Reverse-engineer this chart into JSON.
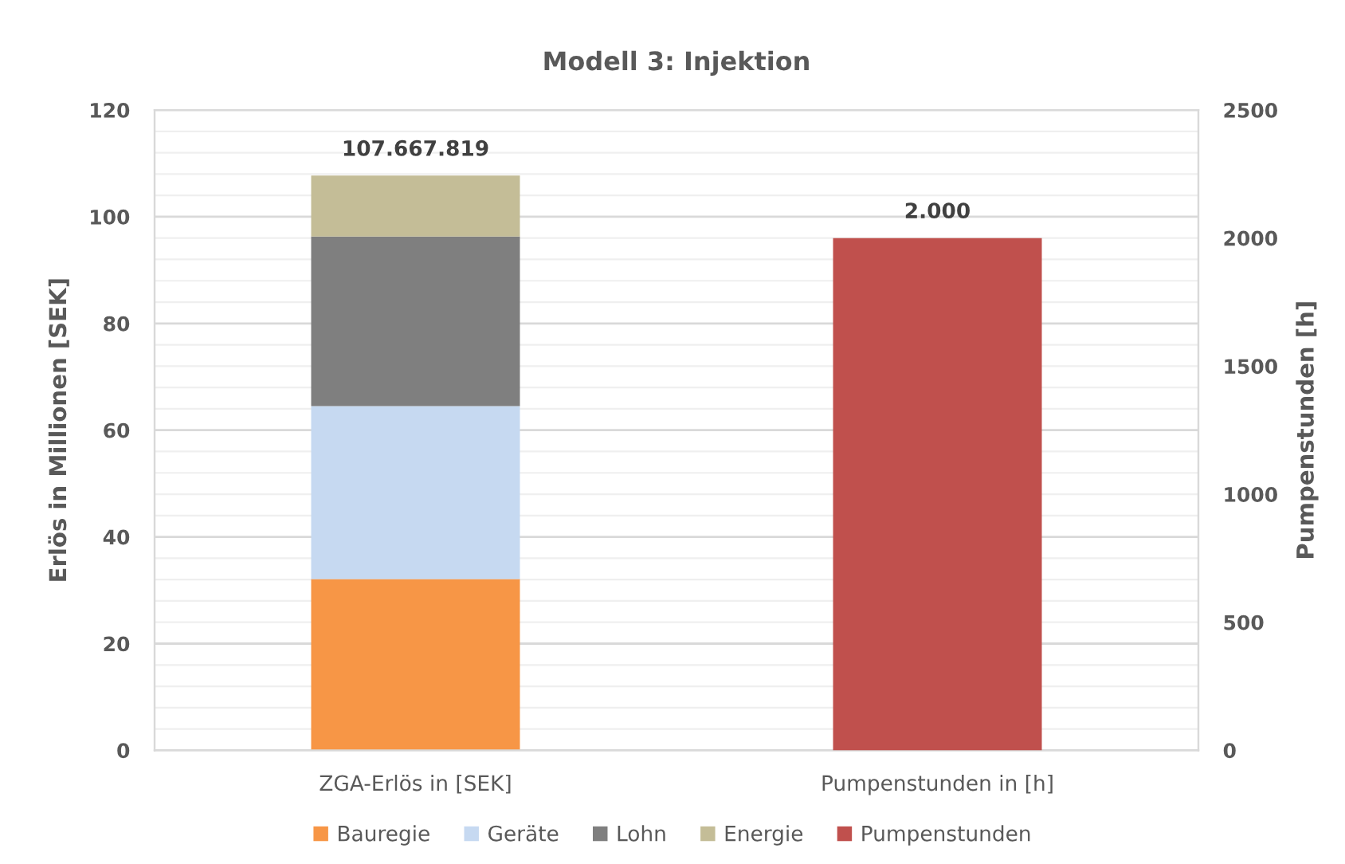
{
  "chart_data": {
    "type": "bar",
    "title": "Modell 3: Injektion",
    "ylabel": "Erlös in Millionen [SEK]",
    "y2label": "Pumpenstunden [h]",
    "categories": [
      "ZGA-Erlös in [SEK]",
      "Pumpenstunden in [h]"
    ],
    "stacked": true,
    "series": [
      {
        "name": "Bauregie",
        "color": "#f79646",
        "values": [
          32.1,
          null
        ]
      },
      {
        "name": "Geräte",
        "color": "#c6d9f1",
        "values": [
          32.4,
          null
        ]
      },
      {
        "name": "Lohn",
        "color": "#7f7f7f",
        "values": [
          31.8,
          null
        ]
      },
      {
        "name": "Energie",
        "color": "#c4bd97",
        "values": [
          11.4,
          null
        ]
      },
      {
        "name": "Pumpenstunden",
        "color": "#c0504d",
        "values": [
          null,
          2000
        ],
        "axis": "y2",
        "value_labels": [
          null,
          "2.000"
        ]
      }
    ],
    "annotations": [
      {
        "text": "107.667.819",
        "x": "ZGA-Erlös in [SEK]",
        "y": 107.7
      }
    ],
    "ylim": [
      0,
      120
    ],
    "yticks": [
      0,
      {
        "value": 4,
        "label": null
      },
      {
        "value": 8,
        "label": null
      },
      {
        "value": 12,
        "label": null
      },
      {
        "value": 16,
        "label": null
      },
      20,
      {
        "value": 24,
        "label": null
      },
      {
        "value": 28,
        "label": null
      },
      {
        "value": 32,
        "label": null
      },
      {
        "value": 36,
        "label": null
      },
      40,
      {
        "value": 44,
        "label": null
      },
      {
        "value": 48,
        "label": null
      },
      {
        "value": 52,
        "label": null
      },
      {
        "value": 56,
        "label": null
      },
      60,
      {
        "value": 64,
        "label": null
      },
      {
        "value": 68,
        "label": null
      },
      {
        "value": 72,
        "label": null
      },
      {
        "value": 76,
        "label": null
      },
      80,
      {
        "value": 84,
        "label": null
      },
      {
        "value": 88,
        "label": null
      },
      {
        "value": 92,
        "label": null
      },
      {
        "value": 96,
        "label": null
      },
      100,
      {
        "value": 104,
        "label": null
      },
      {
        "value": 108,
        "label": null
      },
      {
        "value": 112,
        "label": null
      },
      {
        "value": 116,
        "label": null
      },
      120
    ],
    "y2lim": [
      0,
      2500
    ],
    "y2ticks": [
      0,
      500,
      1000,
      1500,
      2000,
      2500
    ],
    "grid": "y",
    "legend": "bottom"
  }
}
